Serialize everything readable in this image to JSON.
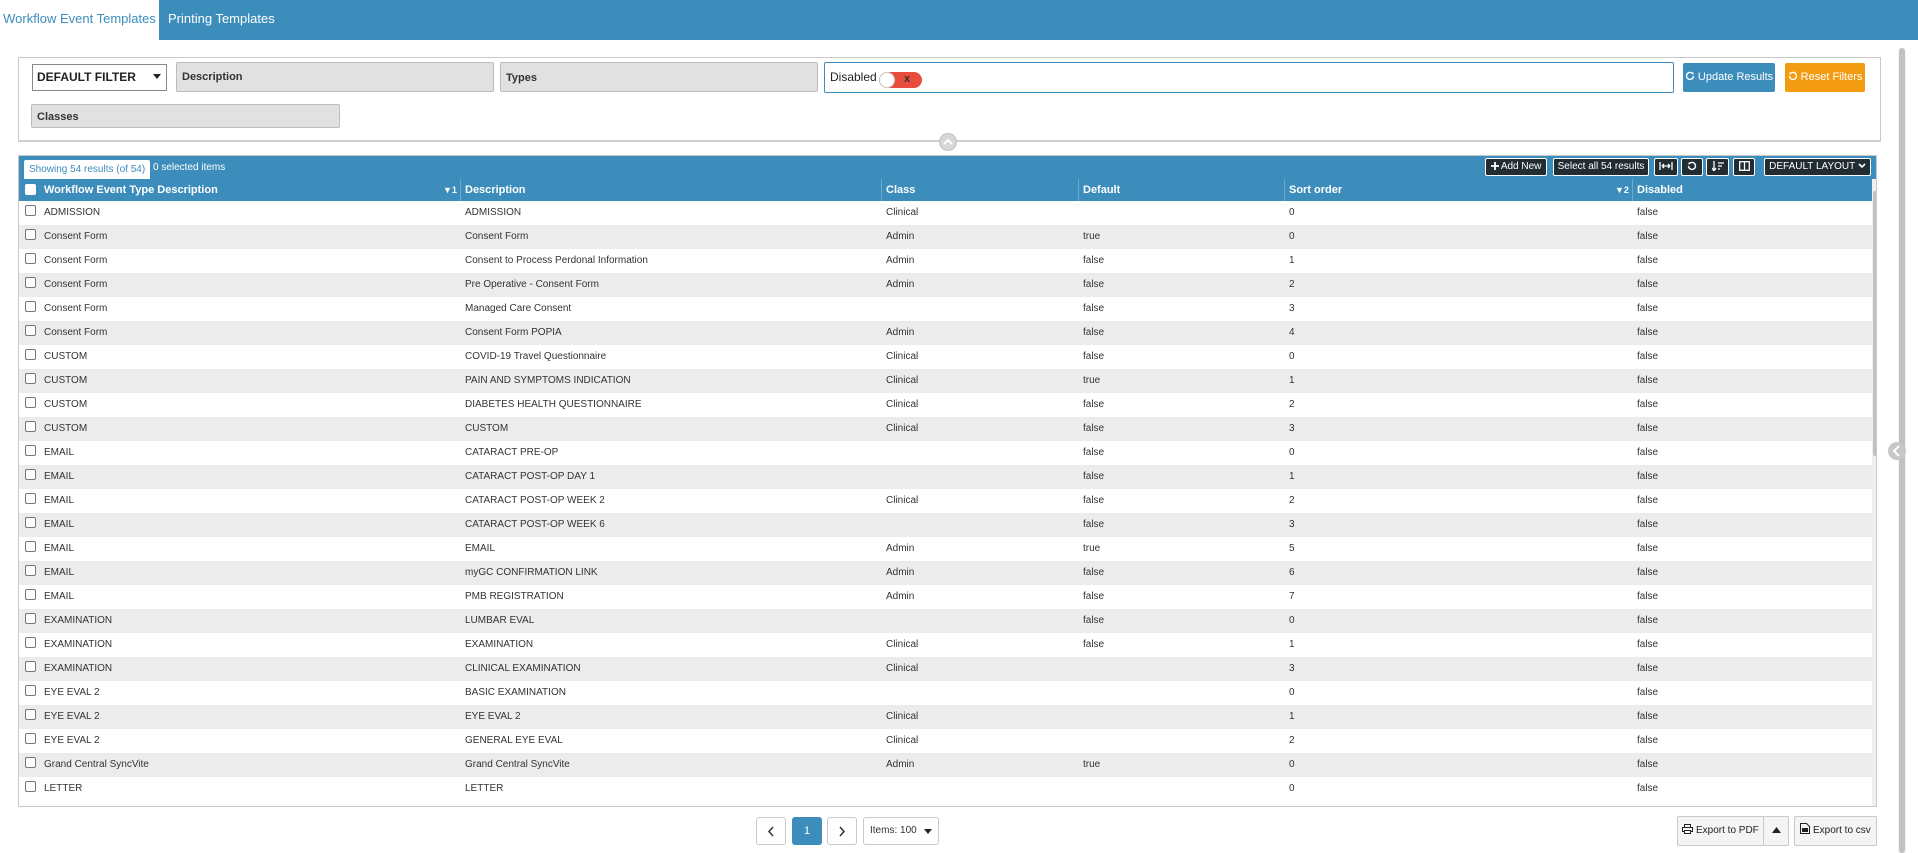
{
  "tabs": [
    {
      "label": "Workflow Event Templates",
      "active": true
    },
    {
      "label": "Printing Templates",
      "active": false
    }
  ],
  "filters": {
    "default_filter": "DEFAULT FILTER",
    "description": "Description",
    "types": "Types",
    "disabled_label": "Disabled",
    "disabled_toggle": "x",
    "classes": "Classes",
    "update_results": "Update Results",
    "reset_filters": "Reset Filters"
  },
  "grid": {
    "showing": "Showing 54 results (of 54)",
    "selected": "0 selected items",
    "add_new": "Add New",
    "select_all": "Select all 54 results",
    "layout": "DEFAULT LAYOUT",
    "columns": [
      {
        "label": "Workflow Event Type Description",
        "sort": "1"
      },
      {
        "label": "Description",
        "sort": ""
      },
      {
        "label": "Class",
        "sort": ""
      },
      {
        "label": "Default",
        "sort": ""
      },
      {
        "label": "Sort order",
        "sort": "2"
      },
      {
        "label": "Disabled",
        "sort": ""
      }
    ],
    "rows": [
      [
        "ADMISSION",
        "ADMISSION",
        "Clinical",
        "",
        "0",
        "false"
      ],
      [
        "Consent Form",
        "Consent Form",
        "Admin",
        "true",
        "0",
        "false"
      ],
      [
        "Consent Form",
        "Consent to Process Perdonal Information",
        "Admin",
        "false",
        "1",
        "false"
      ],
      [
        "Consent Form",
        "Pre Operative - Consent Form",
        "Admin",
        "false",
        "2",
        "false"
      ],
      [
        "Consent Form",
        "Managed Care Consent",
        "",
        "false",
        "3",
        "false"
      ],
      [
        "Consent Form",
        "Consent Form POPIA",
        "Admin",
        "false",
        "4",
        "false"
      ],
      [
        "CUSTOM",
        "COVID-19 Travel Questionnaire",
        "Clinical",
        "false",
        "0",
        "false"
      ],
      [
        "CUSTOM",
        "PAIN AND SYMPTOMS INDICATION",
        "Clinical",
        "true",
        "1",
        "false"
      ],
      [
        "CUSTOM",
        "DIABETES HEALTH QUESTIONNAIRE",
        "Clinical",
        "false",
        "2",
        "false"
      ],
      [
        "CUSTOM",
        "CUSTOM",
        "Clinical",
        "false",
        "3",
        "false"
      ],
      [
        "EMAIL",
        "CATARACT PRE-OP",
        "",
        "false",
        "0",
        "false"
      ],
      [
        "EMAIL",
        "CATARACT POST-OP DAY 1",
        "",
        "false",
        "1",
        "false"
      ],
      [
        "EMAIL",
        "CATARACT POST-OP WEEK 2",
        "Clinical",
        "false",
        "2",
        "false"
      ],
      [
        "EMAIL",
        "CATARACT POST-OP WEEK 6",
        "",
        "false",
        "3",
        "false"
      ],
      [
        "EMAIL",
        "EMAIL",
        "Admin",
        "true",
        "5",
        "false"
      ],
      [
        "EMAIL",
        "myGC CONFIRMATION LINK",
        "Admin",
        "false",
        "6",
        "false"
      ],
      [
        "EMAIL",
        "PMB REGISTRATION",
        "Admin",
        "false",
        "7",
        "false"
      ],
      [
        "EXAMINATION",
        "LUMBAR EVAL",
        "",
        "false",
        "0",
        "false"
      ],
      [
        "EXAMINATION",
        "EXAMINATION",
        "Clinical",
        "false",
        "1",
        "false"
      ],
      [
        "EXAMINATION",
        "CLINICAL EXAMINATION",
        "Clinical",
        "",
        "3",
        "false"
      ],
      [
        "EYE EVAL 2",
        "BASIC EXAMINATION",
        "",
        "",
        "0",
        "false"
      ],
      [
        "EYE EVAL 2",
        "EYE EVAL 2",
        "Clinical",
        "",
        "1",
        "false"
      ],
      [
        "EYE EVAL 2",
        "GENERAL EYE EVAL",
        "Clinical",
        "",
        "2",
        "false"
      ],
      [
        "Grand Central SyncVite",
        "Grand Central SyncVite",
        "Admin",
        "true",
        "0",
        "false"
      ],
      [
        "LETTER",
        "LETTER",
        "",
        "",
        "0",
        "false"
      ]
    ]
  },
  "pager": {
    "current_page": "1",
    "items_per_page": "Items: 100"
  },
  "export": {
    "pdf": "Export to PDF",
    "csv": "Export to csv"
  },
  "colors": {
    "primary": "#3c8dbc",
    "orange": "#f39c12",
    "toggle_off": "#e74c3c",
    "dark_btn": "#222d32"
  },
  "icons": [
    "refresh-icon",
    "undo-icon",
    "plus-icon",
    "expand-columns-icon",
    "sort-icon",
    "columns-icon",
    "chevron-down-icon",
    "chevron-up-icon",
    "chevron-left-icon",
    "chevron-right-icon",
    "print-icon",
    "caret-up-icon",
    "csv-icon"
  ]
}
